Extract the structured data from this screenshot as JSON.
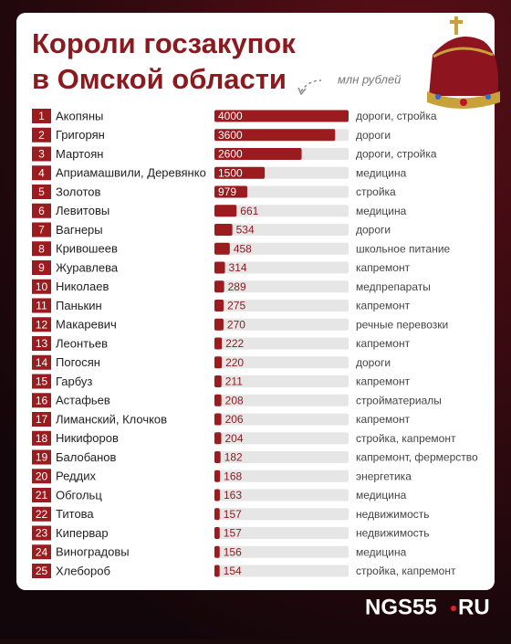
{
  "chart_data": {
    "type": "bar",
    "title_lines": [
      "Короли госзакупок",
      "в Омской области"
    ],
    "unit": "млн рублей",
    "ranks": [
      1,
      2,
      3,
      4,
      5,
      6,
      7,
      8,
      9,
      10,
      11,
      12,
      13,
      14,
      15,
      16,
      17,
      18,
      19,
      20,
      21,
      22,
      23,
      24,
      25
    ],
    "categories": [
      "Акопяны",
      "Григорян",
      "Мартоян",
      "Априамашвили, Деревянко",
      "Золотов",
      "Левитовы",
      "Вагнеры",
      "Кривошеев",
      "Журавлева",
      "Николаев",
      "Панькин",
      "Макаревич",
      "Леонтьев",
      "Погосян",
      "Гарбуз",
      "Астафьев",
      "Лиманский, Клочков",
      "Никифоров",
      "Балобанов",
      "Реддих",
      "Обгольц",
      "Титова",
      "Кипервар",
      "Виноградовы",
      "Хлебороб"
    ],
    "values": [
      4000,
      3600,
      2600,
      1500,
      979,
      661,
      534,
      458,
      314,
      289,
      275,
      270,
      222,
      220,
      211,
      208,
      206,
      204,
      182,
      168,
      163,
      157,
      157,
      156,
      154
    ],
    "sectors": [
      "дороги, стройка",
      "дороги",
      "дороги, стройка",
      "медицина",
      "стройка",
      "медицина",
      "дороги",
      "школьное питание",
      "капремонт",
      "медпрепараты",
      "капремонт",
      "речные перевозки",
      "капремонт",
      "дороги",
      "капремонт",
      "стройматериалы",
      "капремонт",
      "стройка, капремонт",
      "капремонт, фермерство",
      "энергетика",
      "медицина",
      "недвижимость",
      "недвижимость",
      "медицина",
      "стройка, капремонт"
    ],
    "xlim": [
      0,
      4000
    ],
    "color": "#9b1b1f",
    "brand": [
      "NGS55",
      "RU"
    ]
  }
}
